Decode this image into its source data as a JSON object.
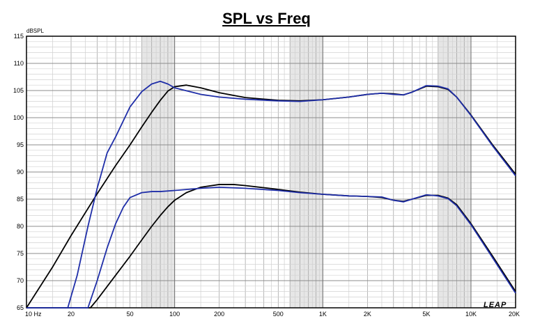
{
  "chart_data": {
    "type": "line",
    "title": "SPL vs Freq",
    "ylabel_unit": "dBSPL",
    "xscale": "log",
    "xlim": [
      10,
      20000
    ],
    "ylim": [
      65,
      115
    ],
    "grid": true,
    "x_tick_labels": [
      "10 Hz",
      "20",
      "50",
      "100",
      "200",
      "500",
      "1K",
      "2K",
      "5K",
      "10K",
      "20K"
    ],
    "x_tick_values": [
      10,
      20,
      50,
      100,
      200,
      500,
      1000,
      2000,
      5000,
      10000,
      20000
    ],
    "y_ticks": [
      65,
      70,
      75,
      80,
      85,
      90,
      95,
      100,
      105,
      110,
      115
    ],
    "logo": "LEAP",
    "series": [
      {
        "color": "#000000",
        "points": [
          [
            10,
            65
          ],
          [
            15,
            72.5
          ],
          [
            20,
            78.3
          ],
          [
            30,
            86.0
          ],
          [
            40,
            91.2
          ],
          [
            50,
            95.0
          ],
          [
            60,
            98.3
          ],
          [
            70,
            101.0
          ],
          [
            80,
            103.2
          ],
          [
            90,
            104.9
          ],
          [
            100,
            105.7
          ],
          [
            120,
            106.0
          ],
          [
            150,
            105.5
          ],
          [
            200,
            104.6
          ],
          [
            300,
            103.7
          ],
          [
            500,
            103.2
          ],
          [
            700,
            103.1
          ],
          [
            1000,
            103.3
          ],
          [
            1500,
            103.8
          ],
          [
            2000,
            104.3
          ],
          [
            2500,
            104.5
          ],
          [
            3000,
            104.4
          ],
          [
            3500,
            104.2
          ],
          [
            4000,
            104.7
          ],
          [
            5000,
            105.8
          ],
          [
            6000,
            105.7
          ],
          [
            7000,
            105.2
          ],
          [
            8000,
            103.8
          ],
          [
            10000,
            100.5
          ],
          [
            14000,
            95.0
          ],
          [
            20000,
            89.6
          ]
        ]
      },
      {
        "color": "#1f2ea8",
        "points": [
          [
            10,
            65
          ],
          [
            19,
            65
          ],
          [
            22,
            71.0
          ],
          [
            26,
            80.0
          ],
          [
            30,
            87.0
          ],
          [
            35,
            93.5
          ],
          [
            40,
            96.5
          ],
          [
            50,
            102.0
          ],
          [
            60,
            104.8
          ],
          [
            70,
            106.2
          ],
          [
            80,
            106.7
          ],
          [
            90,
            106.2
          ],
          [
            100,
            105.5
          ],
          [
            150,
            104.3
          ],
          [
            200,
            103.8
          ],
          [
            300,
            103.4
          ],
          [
            500,
            103.1
          ],
          [
            700,
            103.0
          ],
          [
            1000,
            103.3
          ],
          [
            1500,
            103.8
          ],
          [
            2000,
            104.3
          ],
          [
            2500,
            104.5
          ],
          [
            3000,
            104.3
          ],
          [
            3500,
            104.2
          ],
          [
            4000,
            104.7
          ],
          [
            5000,
            105.9
          ],
          [
            6000,
            105.8
          ],
          [
            7000,
            105.3
          ],
          [
            8000,
            103.8
          ],
          [
            10000,
            100.4
          ],
          [
            14000,
            94.8
          ],
          [
            20000,
            89.3
          ]
        ]
      },
      {
        "color": "#000000",
        "points": [
          [
            10,
            65
          ],
          [
            27,
            65
          ],
          [
            30,
            66.5
          ],
          [
            40,
            71.0
          ],
          [
            50,
            74.5
          ],
          [
            60,
            77.5
          ],
          [
            70,
            80.0
          ],
          [
            80,
            82.0
          ],
          [
            90,
            83.6
          ],
          [
            100,
            84.8
          ],
          [
            120,
            86.2
          ],
          [
            150,
            87.2
          ],
          [
            200,
            87.7
          ],
          [
            250,
            87.7
          ],
          [
            300,
            87.5
          ],
          [
            500,
            86.8
          ],
          [
            700,
            86.3
          ],
          [
            1000,
            85.9
          ],
          [
            1500,
            85.6
          ],
          [
            2000,
            85.5
          ],
          [
            2500,
            85.3
          ],
          [
            3000,
            84.8
          ],
          [
            3500,
            84.6
          ],
          [
            4000,
            85.0
          ],
          [
            5000,
            85.7
          ],
          [
            6000,
            85.7
          ],
          [
            7000,
            85.2
          ],
          [
            8000,
            84.0
          ],
          [
            10000,
            80.5
          ],
          [
            14000,
            74.5
          ],
          [
            20000,
            68.0
          ]
        ]
      },
      {
        "color": "#1f2ea8",
        "points": [
          [
            10,
            65
          ],
          [
            26,
            65
          ],
          [
            30,
            70.0
          ],
          [
            35,
            76.0
          ],
          [
            40,
            80.5
          ],
          [
            45,
            83.5
          ],
          [
            50,
            85.3
          ],
          [
            60,
            86.2
          ],
          [
            70,
            86.4
          ],
          [
            80,
            86.4
          ],
          [
            100,
            86.6
          ],
          [
            150,
            87.0
          ],
          [
            200,
            87.2
          ],
          [
            300,
            87.0
          ],
          [
            500,
            86.6
          ],
          [
            700,
            86.2
          ],
          [
            1000,
            85.9
          ],
          [
            1500,
            85.6
          ],
          [
            2000,
            85.5
          ],
          [
            2500,
            85.4
          ],
          [
            3000,
            84.8
          ],
          [
            3500,
            84.5
          ],
          [
            4000,
            85.0
          ],
          [
            5000,
            85.8
          ],
          [
            6000,
            85.6
          ],
          [
            7000,
            85.1
          ],
          [
            8000,
            83.8
          ],
          [
            10000,
            80.3
          ],
          [
            14000,
            74.2
          ],
          [
            20000,
            67.7
          ]
        ]
      }
    ]
  }
}
